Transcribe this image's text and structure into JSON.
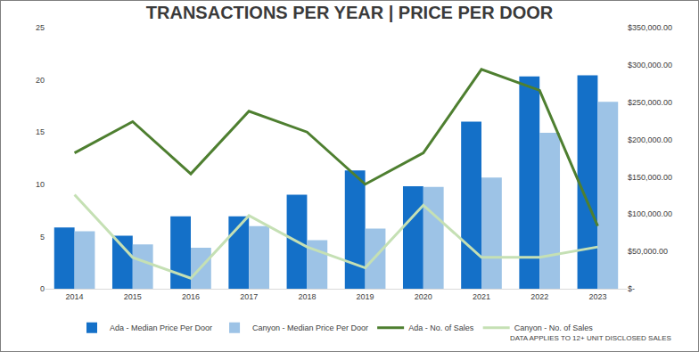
{
  "chart_data": {
    "type": "bar",
    "title": "TRANSACTIONS PER YEAR | PRICE PER DOOR",
    "categories": [
      "2014",
      "2015",
      "2016",
      "2017",
      "2018",
      "2019",
      "2020",
      "2021",
      "2022",
      "2023"
    ],
    "series": [
      {
        "name": "Ada - Median Price Per Door",
        "type": "bar",
        "axis": "y2",
        "color": "#1470c8",
        "values": [
          82000,
          71000,
          97000,
          97000,
          126000,
          158500,
          137500,
          224000,
          284500,
          286000
        ]
      },
      {
        "name": "Canyon - Median Price Per Door",
        "type": "bar",
        "axis": "y2",
        "color": "#9dc3e6",
        "values": [
          77000,
          59500,
          55000,
          84000,
          65000,
          80500,
          136500,
          149000,
          209000,
          250700
        ]
      },
      {
        "name": "Ada - No. of Sales",
        "type": "line",
        "color": "#4e7f30",
        "values": [
          13,
          16,
          11,
          17,
          15,
          10,
          13,
          21,
          19,
          6
        ]
      },
      {
        "name": "Canyon - No. of Sales",
        "type": "line",
        "color": "#c5e0b4",
        "values": [
          9,
          3,
          1,
          7,
          4,
          2,
          8,
          3,
          3,
          4
        ]
      }
    ],
    "ylim": [
      0,
      25
    ],
    "yticks": [
      0,
      5,
      10,
      15,
      20,
      25
    ],
    "y2lim": [
      0,
      350000
    ],
    "y2ticks": [
      {
        "value": 0,
        "label": "$-"
      },
      {
        "value": 50000,
        "label": "$50,000.00"
      },
      {
        "value": 100000,
        "label": "$100,000.00"
      },
      {
        "value": 150000,
        "label": "$150,000.00"
      },
      {
        "value": 200000,
        "label": "$200,000.00"
      },
      {
        "value": 250000,
        "label": "$250,000.00"
      },
      {
        "value": 300000,
        "label": "$300,000.00"
      },
      {
        "value": 350000,
        "label": "$350,000.00"
      }
    ],
    "grid": false,
    "legend": "bottom",
    "annotations": [
      "DATA APPLIES TO 12+ UNIT DISCLOSED SALES"
    ]
  }
}
